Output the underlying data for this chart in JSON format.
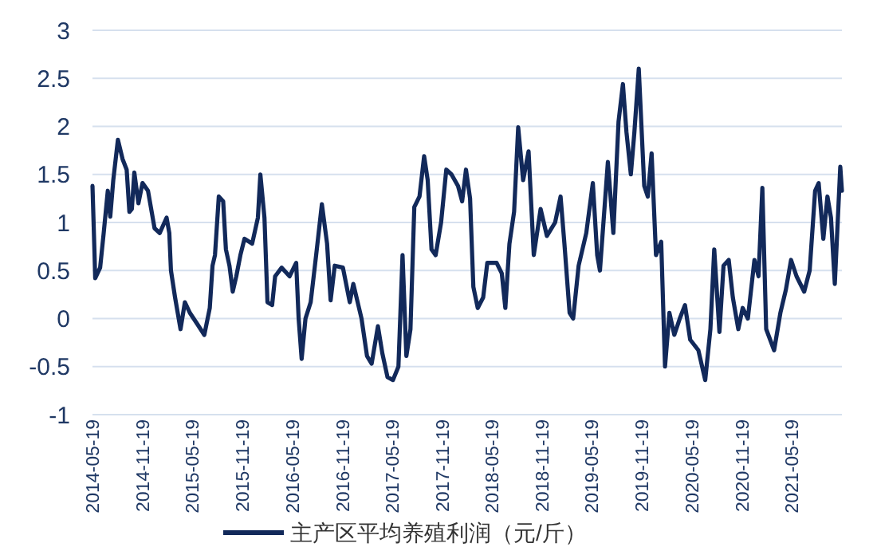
{
  "chart_data": {
    "type": "line",
    "legend": "bottom",
    "grid": "y",
    "line_style": "solid",
    "marker": "none",
    "xlim": [
      "2014-05-19",
      "2021-11-19"
    ],
    "xticks": [
      "2014-05-19",
      "2014-11-19",
      "2015-05-19",
      "2015-11-19",
      "2016-05-19",
      "2016-11-19",
      "2017-05-19",
      "2017-11-19",
      "2018-05-19",
      "2018-11-19",
      "2019-05-19",
      "2019-11-19",
      "2020-05-19",
      "2020-11-19",
      "2021-05-19"
    ],
    "ylim": [
      -1,
      3
    ],
    "yticks": [
      -1,
      -0.5,
      0,
      0.5,
      1,
      1.5,
      2,
      2.5,
      3
    ],
    "series": [
      {
        "name": "主产区平均养殖利润（元/斤）",
        "color": "#12295a",
        "x": [
          "2014-05-19",
          "2014-05-26",
          "2014-05-29",
          "2014-06-16",
          "2014-06-29",
          "2014-07-14",
          "2014-07-23",
          "2014-08-03",
          "2014-08-20",
          "2014-09-06",
          "2014-09-21",
          "2014-10-01",
          "2014-10-10",
          "2014-10-19",
          "2014-11-03",
          "2014-11-18",
          "2014-12-08",
          "2015-01-01",
          "2015-01-20",
          "2015-02-14",
          "2015-02-24",
          "2015-03-02",
          "2015-03-17",
          "2015-04-06",
          "2015-04-22",
          "2015-05-10",
          "2015-06-07",
          "2015-07-02",
          "2015-07-22",
          "2015-08-01",
          "2015-08-10",
          "2015-08-24",
          "2015-09-09",
          "2015-09-19",
          "2015-10-02",
          "2015-10-14",
          "2015-10-27",
          "2015-11-11",
          "2015-11-26",
          "2015-12-24",
          "2016-01-14",
          "2016-01-23",
          "2016-02-07",
          "2016-02-18",
          "2016-03-06",
          "2016-03-17",
          "2016-04-10",
          "2016-05-09",
          "2016-06-02",
          "2016-06-11",
          "2016-06-22",
          "2016-07-06",
          "2016-07-25",
          "2016-08-14",
          "2016-09-04",
          "2016-09-23",
          "2016-10-06",
          "2016-10-21",
          "2016-11-20",
          "2016-12-15",
          "2016-12-28",
          "2017-01-27",
          "2017-02-16",
          "2017-03-05",
          "2017-03-28",
          "2017-04-13",
          "2017-05-02",
          "2017-05-22",
          "2017-06-11",
          "2017-06-26",
          "2017-07-10",
          "2017-07-25",
          "2017-08-08",
          "2017-08-27",
          "2017-09-13",
          "2017-09-26",
          "2017-10-10",
          "2017-10-25",
          "2017-11-14",
          "2017-12-03",
          "2017-12-22",
          "2018-01-15",
          "2018-01-30",
          "2018-02-13",
          "2018-02-28",
          "2018-03-12",
          "2018-03-28",
          "2018-04-17",
          "2018-05-02",
          "2018-06-05",
          "2018-06-24",
          "2018-07-07",
          "2018-07-22",
          "2018-08-08",
          "2018-08-23",
          "2018-09-10",
          "2018-09-30",
          "2018-10-19",
          "2018-11-13",
          "2018-12-06",
          "2019-01-05",
          "2019-01-25",
          "2019-02-08",
          "2019-02-27",
          "2019-03-12",
          "2019-04-01",
          "2019-04-29",
          "2019-05-23",
          "2019-06-08",
          "2019-06-18",
          "2019-07-17",
          "2019-08-06",
          "2019-08-25",
          "2019-09-10",
          "2019-09-23",
          "2019-10-09",
          "2019-10-22",
          "2019-11-07",
          "2019-11-27",
          "2019-12-10",
          "2019-12-24",
          "2020-01-09",
          "2020-01-28",
          "2020-02-11",
          "2020-02-27",
          "2020-03-16",
          "2020-04-05",
          "2020-04-24",
          "2020-05-13",
          "2020-06-12",
          "2020-07-07",
          "2020-07-26",
          "2020-08-09",
          "2020-08-28",
          "2020-09-12",
          "2020-10-01",
          "2020-10-16",
          "2020-11-05",
          "2020-11-21",
          "2020-12-10",
          "2021-01-03",
          "2021-01-18",
          "2021-02-01",
          "2021-02-15",
          "2021-03-16",
          "2021-04-08",
          "2021-04-28",
          "2021-05-17",
          "2021-06-06",
          "2021-07-04",
          "2021-07-24",
          "2021-08-13",
          "2021-08-26",
          "2021-09-12",
          "2021-09-27",
          "2021-10-10",
          "2021-10-24",
          "2021-11-13",
          "2021-11-19"
        ],
        "values": [
          1.38,
          0.72,
          0.42,
          0.53,
          0.89,
          1.33,
          1.06,
          1.44,
          1.86,
          1.66,
          1.55,
          1.11,
          1.14,
          1.52,
          1.2,
          1.41,
          1.33,
          0.94,
          0.89,
          1.05,
          0.89,
          0.5,
          0.22,
          -0.11,
          0.17,
          0.06,
          -0.06,
          -0.17,
          0.11,
          0.55,
          0.66,
          1.27,
          1.22,
          0.72,
          0.55,
          0.28,
          0.44,
          0.66,
          0.83,
          0.78,
          1.05,
          1.5,
          1.05,
          0.17,
          0.14,
          0.44,
          0.53,
          0.44,
          0.58,
          0,
          -0.42,
          0,
          0.17,
          0.66,
          1.19,
          0.78,
          0.19,
          0.55,
          0.53,
          0.17,
          0.36,
          0,
          -0.39,
          -0.47,
          -0.08,
          -0.36,
          -0.61,
          -0.64,
          -0.5,
          0.66,
          -0.39,
          -0.11,
          1.16,
          1.27,
          1.69,
          1.44,
          0.72,
          0.66,
          1.0,
          1.55,
          1.5,
          1.38,
          1.22,
          1.55,
          1.25,
          0.33,
          0.11,
          0.22,
          0.58,
          0.58,
          0.47,
          0.11,
          0.78,
          1.11,
          1.99,
          1.44,
          1.74,
          0.66,
          1.14,
          0.86,
          1.0,
          1.27,
          0.78,
          0.06,
          0,
          0.55,
          0.89,
          1.41,
          0.66,
          0.5,
          1.63,
          0.89,
          2.05,
          2.44,
          1.94,
          1.5,
          1.94,
          2.6,
          1.38,
          1.27,
          1.72,
          0.66,
          0.8,
          -0.5,
          0.06,
          -0.17,
          0,
          0.14,
          -0.22,
          -0.33,
          -0.64,
          -0.11,
          0.72,
          -0.14,
          0.55,
          0.61,
          0.22,
          -0.11,
          0.11,
          0,
          0.61,
          0.44,
          1.36,
          -0.11,
          -0.33,
          0.06,
          0.3,
          0.61,
          0.44,
          0.28,
          0.5,
          1.33,
          1.41,
          0.83,
          1.27,
          1.05,
          0.36,
          1.58,
          1.33
        ]
      }
    ]
  }
}
